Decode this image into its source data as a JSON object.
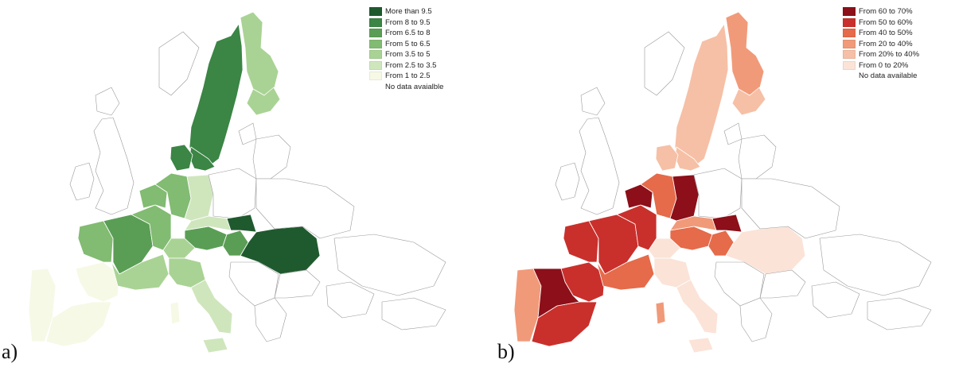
{
  "panels": [
    {
      "label": "a)",
      "legend": [
        {
          "label": "More than 9.5",
          "color": "#1f5a2e"
        },
        {
          "label": "From 8 to 9.5",
          "color": "#3b8545"
        },
        {
          "label": "From 6.5 to 8",
          "color": "#5a9e55"
        },
        {
          "label": "From 5 to 6.5",
          "color": "#82bb72"
        },
        {
          "label": "From 3.5 to 5",
          "color": "#a9d394"
        },
        {
          "label": "From 2.5 to 3.5",
          "color": "#cfe6bd"
        },
        {
          "label": "From 1 to 2.5",
          "color": "#f5f9e6"
        },
        {
          "label": "No data avaialble",
          "color": "#ffffff"
        }
      ]
    },
    {
      "label": "b)",
      "legend": [
        {
          "label": "From 60 to 70%",
          "color": "#8c0f19"
        },
        {
          "label": "From 50 to 60%",
          "color": "#c9302c"
        },
        {
          "label": "From 40 to 50%",
          "color": "#e56b4a"
        },
        {
          "label": "From 20 to 40%",
          "color": "#f19a79"
        },
        {
          "label": "From 20% to 40%",
          "color": "#f6c0a6"
        },
        {
          "label": "From 0 to 20%",
          "color": "#fbe3d8"
        },
        {
          "label": "No data available",
          "color": "#ffffff"
        }
      ]
    }
  ],
  "map_regions": {
    "a": {
      "scandinavia_west": 1,
      "sweden_south": 1,
      "finland_north": 4,
      "finland_south": 4,
      "denmark": 1,
      "uk": 7,
      "ireland": 7,
      "iberia_west": 6,
      "iberia_east": 6,
      "iberia_south": 6,
      "france_west": 3,
      "france_center": 2,
      "france_east": 3,
      "france_south": 4,
      "benelux": 3,
      "germany_west": 3,
      "germany_east": 5,
      "poland": 7,
      "alps": 4,
      "austria": 2,
      "czechia": 5,
      "hungary": 2,
      "romania": 0,
      "slovakia": 0,
      "italy_north": 4,
      "italy_south": 5,
      "sicily": 5,
      "sardinia": 6,
      "balkans": 7,
      "greece": 7,
      "baltics": 7,
      "bulgaria": 7,
      "ukraine": 7
    },
    "b": {
      "scandinavia_west": 4,
      "sweden_south": 4,
      "finland_north": 3,
      "finland_south": 4,
      "denmark": 4,
      "uk": 6,
      "ireland": 6,
      "iberia_west": 3,
      "iberia_east": 1,
      "iberia_south": 1,
      "iberia_center": 0,
      "france_west": 1,
      "france_center": 1,
      "france_east": 1,
      "france_south": 2,
      "benelux": 0,
      "germany_west": 2,
      "germany_east": 0,
      "poland": 6,
      "alps": 5,
      "austria": 2,
      "czechia": 3,
      "hungary": 2,
      "romania": 5,
      "slovakia": 0,
      "italy_north": 5,
      "italy_south": 5,
      "sicily": 5,
      "sardinia": 3,
      "balkans": 6,
      "greece": 6,
      "baltics": 6,
      "bulgaria": 6,
      "ukraine": 6
    }
  }
}
